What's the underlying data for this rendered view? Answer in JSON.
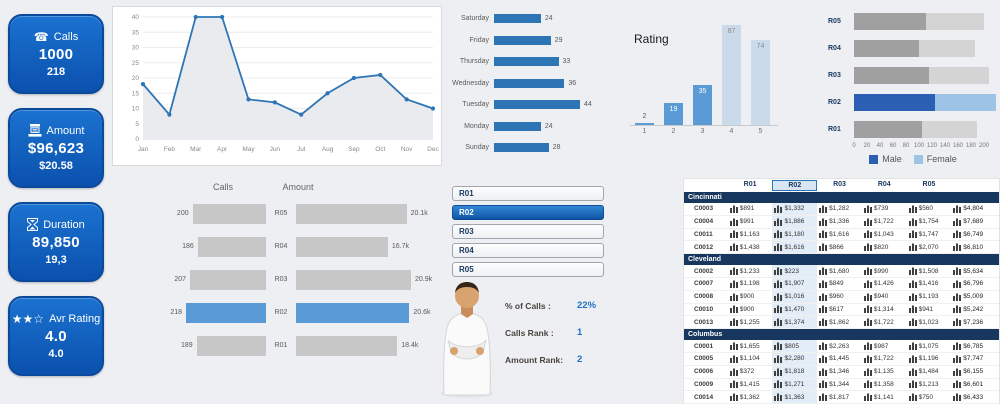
{
  "theme": {
    "accent_blue": "#1f6fc4",
    "bar_blue": "#5b9bd5",
    "bar_light_blue": "#cadaeb",
    "bar_gray": "#c7c7c7",
    "male_color": "#2a5fb4",
    "female_color": "#9dc3e6",
    "navy": "#17375e"
  },
  "kpi_cards": [
    {
      "icon": "phone-icon",
      "title": "Calls",
      "value": "1000",
      "sub": "218"
    },
    {
      "icon": "cash-register-icon",
      "title": "Amount",
      "value": "$96,623",
      "sub": "$20.58"
    },
    {
      "icon": "hourglass-icon",
      "title": "Duration",
      "value": "89,850",
      "sub": "19,3"
    },
    {
      "icon": "stars-icon",
      "title": "Avr Rating",
      "value": "4.0",
      "sub": "4.0"
    }
  ],
  "chart_data": [
    {
      "id": "monthly_calls",
      "type": "area",
      "x": [
        "Jan",
        "Feb",
        "Mar",
        "Apr",
        "May",
        "Jun",
        "Jul",
        "Aug",
        "Sep",
        "Oct",
        "Nov",
        "Dec"
      ],
      "values": [
        18,
        8,
        40,
        40,
        13,
        12,
        8,
        15,
        20,
        21,
        13,
        10
      ],
      "ylim": [
        0,
        40
      ],
      "yticks": [
        0,
        5,
        10,
        15,
        20,
        25,
        30,
        35,
        40
      ],
      "grid": true,
      "legend_position": "none"
    },
    {
      "id": "weekday_calls",
      "type": "bar",
      "orientation": "horizontal",
      "categories": [
        "Saturday",
        "Friday",
        "Thursday",
        "Wednesday",
        "Tuesday",
        "Monday",
        "Sunday"
      ],
      "values": [
        24,
        29,
        33,
        36,
        44,
        24,
        28
      ]
    },
    {
      "id": "rating",
      "type": "bar",
      "title": "Rating",
      "categories": [
        "1",
        "2",
        "3",
        "4",
        "5"
      ],
      "values": [
        2,
        19,
        35,
        87,
        74
      ],
      "ylim": [
        0,
        100
      ]
    },
    {
      "id": "gender_split",
      "type": "bar",
      "stacked": true,
      "orientation": "horizontal",
      "categories": [
        "R05",
        "R04",
        "R03",
        "R02",
        "R01"
      ],
      "series": [
        {
          "name": "Male",
          "values": [
            110,
            100,
            115,
            125,
            105
          ]
        },
        {
          "name": "Female",
          "values": [
            90,
            86,
            92,
            93,
            84
          ]
        }
      ],
      "xlim": [
        0,
        200
      ],
      "xticks": [
        0,
        20,
        40,
        60,
        80,
        100,
        120,
        140,
        160,
        180,
        200
      ],
      "highlight_category": "R02",
      "legend_position": "bottom"
    },
    {
      "id": "calls_amount_tornado",
      "type": "tornado",
      "categories": [
        "R05",
        "R04",
        "R03",
        "R02",
        "R01"
      ],
      "left_title": "Calls",
      "left_values": [
        200,
        186,
        207,
        218,
        189
      ],
      "right_title": "Amount",
      "right_values": [
        20.1,
        16.7,
        20.9,
        20.6,
        18.4
      ],
      "right_labels": [
        "20.1k",
        "16.7k",
        "20.9k",
        "20.6k",
        "18.4k"
      ],
      "highlight_category": "R02"
    }
  ],
  "slicer": {
    "items": [
      "R01",
      "R02",
      "R03",
      "R04",
      "R05"
    ],
    "selected": "R02"
  },
  "stats": [
    {
      "label": "% of Calls :",
      "value": "22%"
    },
    {
      "label": "Calls Rank :",
      "value": "1"
    },
    {
      "label": "Amount Rank:",
      "value": "2"
    }
  ],
  "table": {
    "columns": [
      "R01",
      "R02",
      "R03",
      "R04",
      "R05"
    ],
    "highlight_column": "R02",
    "groups": [
      {
        "city": "Cincinnati",
        "rows": [
          {
            "code": "C0003",
            "values": [
              "$891",
              "$1,332",
              "$1,282",
              "$739",
              "$560"
            ],
            "total": "$4,804"
          },
          {
            "code": "C0004",
            "values": [
              "$991",
              "$1,886",
              "$1,336",
              "$1,722",
              "$1,754"
            ],
            "total": "$7,689"
          },
          {
            "code": "C0011",
            "values": [
              "$1,163",
              "$1,180",
              "$1,616",
              "$1,043",
              "$1,747"
            ],
            "total": "$6,749"
          },
          {
            "code": "C0012",
            "values": [
              "$1,438",
              "$1,616",
              "$866",
              "$820",
              "$2,070"
            ],
            "total": "$6,810"
          }
        ]
      },
      {
        "city": "Cleveland",
        "rows": [
          {
            "code": "C0002",
            "values": [
              "$1,233",
              "$223",
              "$1,680",
              "$990",
              "$1,508"
            ],
            "total": "$5,634"
          },
          {
            "code": "C0007",
            "values": [
              "$1,198",
              "$1,907",
              "$849",
              "$1,426",
              "$1,416"
            ],
            "total": "$6,796"
          },
          {
            "code": "C0008",
            "values": [
              "$900",
              "$1,016",
              "$960",
              "$940",
              "$1,193"
            ],
            "total": "$5,009"
          },
          {
            "code": "C0010",
            "values": [
              "$900",
              "$1,470",
              "$617",
              "$1,314",
              "$941"
            ],
            "total": "$5,242"
          },
          {
            "code": "C0013",
            "values": [
              "$1,255",
              "$1,374",
              "$1,862",
              "$1,722",
              "$1,023"
            ],
            "total": "$7,236"
          }
        ]
      },
      {
        "city": "Columbus",
        "rows": [
          {
            "code": "C0001",
            "values": [
              "$1,655",
              "$805",
              "$2,263",
              "$987",
              "$1,075"
            ],
            "total": "$6,785"
          },
          {
            "code": "C0005",
            "values": [
              "$1,104",
              "$2,280",
              "$1,445",
              "$1,722",
              "$1,196"
            ],
            "total": "$7,747"
          },
          {
            "code": "C0006",
            "values": [
              "$372",
              "$1,818",
              "$1,346",
              "$1,135",
              "$1,484"
            ],
            "total": "$6,155"
          },
          {
            "code": "C0009",
            "values": [
              "$1,415",
              "$1,271",
              "$1,344",
              "$1,358",
              "$1,213"
            ],
            "total": "$6,601"
          },
          {
            "code": "C0014",
            "values": [
              "$1,362",
              "$1,363",
              "$1,817",
              "$1,141",
              "$750"
            ],
            "total": "$6,433"
          }
        ]
      }
    ]
  }
}
